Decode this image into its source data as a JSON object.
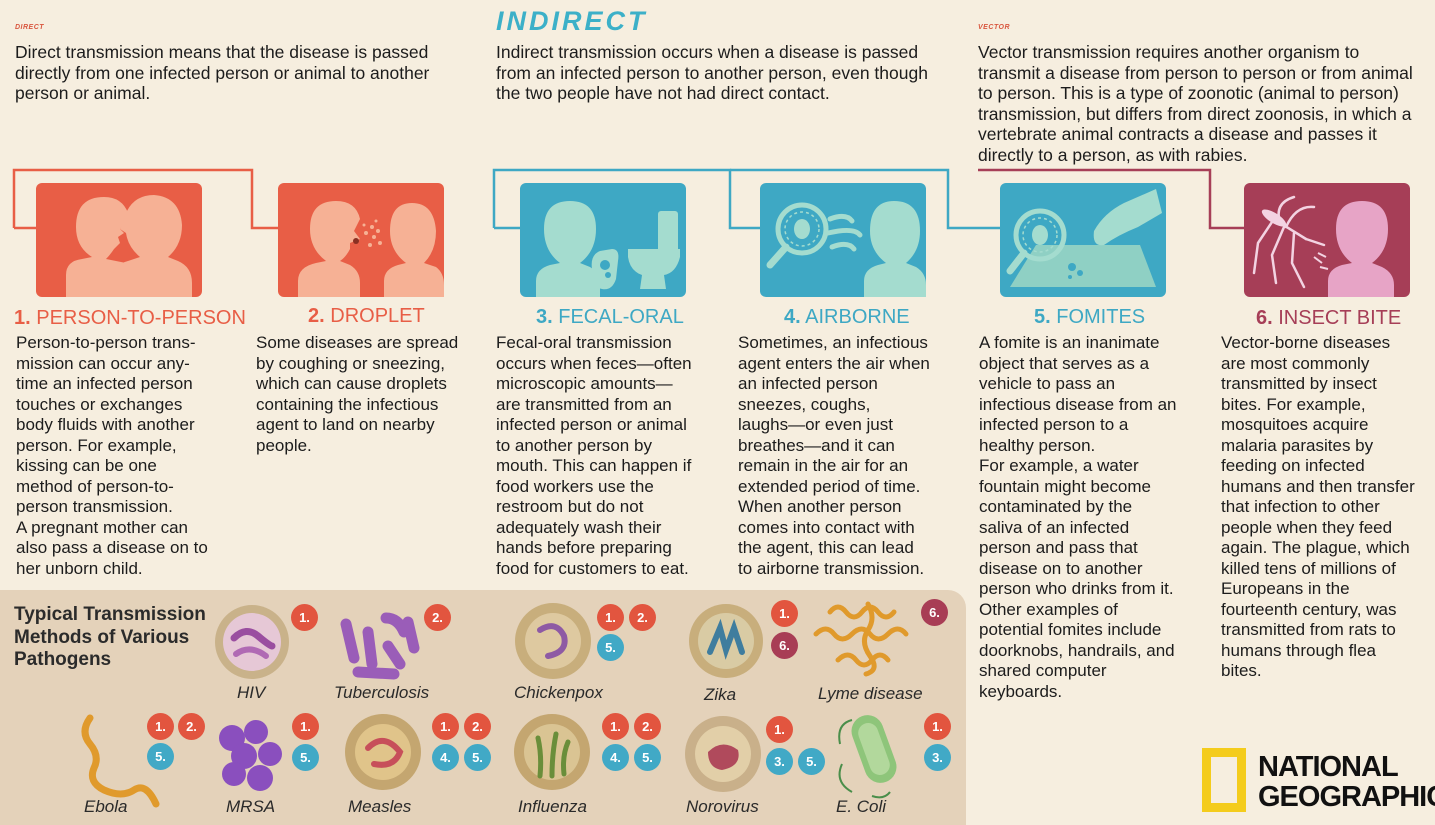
{
  "intro": {
    "direct": {
      "tag": "DIRECT",
      "text_lines": [
        "Direct transmission means that the disease is passed",
        "directly from one infected person or animal to another",
        "person or animal."
      ]
    },
    "indirect": {
      "tag": "INDIRECT",
      "text_lines": [
        "Indirect transmission occurs when a disease is passed",
        "from an infected person to another person, even though",
        "the two people have not had direct contact."
      ]
    },
    "vector": {
      "tag": "VECTOR",
      "text_lines": [
        "Vector transmission requires another organism to",
        "transmit a disease from person to person or from animal",
        "to person. This is a type of zoonotic (animal to person)",
        "transmission, but differs from direct zoonosis, in which a",
        "vertebrate animal contracts a disease and passes it",
        "directly to a person, as with rabies."
      ]
    }
  },
  "methods": [
    {
      "num": "1.",
      "title": "PERSON-TO-PERSON",
      "color": "#e85e46",
      "lines": [
        "Person-to-person trans-",
        "mission can occur any-",
        "time an infected person",
        "touches or exchanges",
        "body fluids with another",
        "person. For example,",
        "kissing can be one",
        "method of person-to-",
        "person transmission.",
        "A pregnant mother can",
        "also pass a disease on to",
        "her unborn child."
      ]
    },
    {
      "num": "2.",
      "title": "DROPLET",
      "color": "#e85e46",
      "lines": [
        "Some diseases are spread",
        "by coughing or sneezing,",
        "which can cause droplets",
        "containing the infectious",
        "agent to land on nearby",
        "people."
      ]
    },
    {
      "num": "3.",
      "title": "FECAL-ORAL",
      "color": "#3ea8c4",
      "lines": [
        "Fecal-oral transmission",
        "occurs when feces—often",
        "microscopic amounts—",
        "are transmitted from an",
        "infected person or animal",
        "to another person by",
        "mouth. This can happen if",
        "food workers use the",
        "restroom but do not",
        "adequately wash their",
        "hands before preparing",
        "food for customers to eat."
      ]
    },
    {
      "num": "4.",
      "title": "AIRBORNE",
      "color": "#3ea8c4",
      "lines": [
        "Sometimes, an infectious",
        "agent enters the air when",
        "an infected person",
        "sneezes, coughs,",
        "laughs—or even just",
        "breathes—and it can",
        "remain in the air for an",
        "extended period of time.",
        "When another person",
        "comes into contact with",
        "the agent, this can lead",
        "to airborne transmission."
      ]
    },
    {
      "num": "5.",
      "title": "FOMITES",
      "color": "#3ea8c4",
      "lines": [
        "A fomite is an inanimate",
        "object that serves as a",
        "vehicle to pass an",
        "infectious disease from an",
        "infected person to a",
        "healthy person.",
        "For example, a water",
        "fountain might become",
        "contaminated by the",
        "saliva of an infected",
        "person and pass that",
        "disease on to another",
        "person who drinks from it.",
        "Other examples of",
        "potential fomites include",
        "doorknobs, handrails, and",
        "shared computer",
        "keyboards."
      ]
    },
    {
      "num": "6.",
      "title": "INSECT BITE",
      "color": "#a63e57",
      "lines": [
        "Vector-borne diseases",
        "are most commonly",
        "transmitted by insect",
        "bites. For example,",
        "mosquitoes acquire",
        "malaria parasites by",
        "feeding on infected",
        "humans and then transfer",
        "that infection to other",
        "people when they feed",
        "again. The plague, which",
        "killed tens of millions of",
        "Europeans in the",
        "fourteenth century, was",
        "transmitted from rats to",
        "humans through flea",
        "bites."
      ]
    }
  ],
  "pathogen_panel": {
    "caption_lines": [
      "Typical Transmission",
      "Methods of Various",
      "Pathogens"
    ],
    "pathogens": [
      {
        "name": "HIV",
        "methods": [
          "1."
        ]
      },
      {
        "name": "Tuberculosis",
        "methods": [
          "2."
        ]
      },
      {
        "name": "Chickenpox",
        "methods": [
          "1.",
          "2.",
          "5."
        ]
      },
      {
        "name": "Zika",
        "methods": [
          "1.",
          "6."
        ]
      },
      {
        "name": "Lyme disease",
        "methods": [
          "6."
        ]
      },
      {
        "name": "Ebola",
        "methods": [
          "1.",
          "2.",
          "5."
        ]
      },
      {
        "name": "MRSA",
        "methods": [
          "1.",
          "5."
        ]
      },
      {
        "name": "Measles",
        "methods": [
          "1.",
          "2.",
          "4.",
          "5."
        ]
      },
      {
        "name": "Influenza",
        "methods": [
          "1.",
          "2.",
          "4.",
          "5."
        ]
      },
      {
        "name": "Norovirus",
        "methods": [
          "1.",
          "3.",
          "5."
        ]
      },
      {
        "name": "E. Coli",
        "methods": [
          "1.",
          "3."
        ]
      }
    ]
  },
  "brand": {
    "line1": "NATIONAL",
    "line2": "GEOGRAPHIC",
    "logo_color": "#f4cc1c"
  },
  "colors": {
    "direct": "#e85e46",
    "indirect": "#3ea8c4",
    "vector": "#a63e57",
    "background": "#f6eedf",
    "panel": "#e4d2ba"
  }
}
